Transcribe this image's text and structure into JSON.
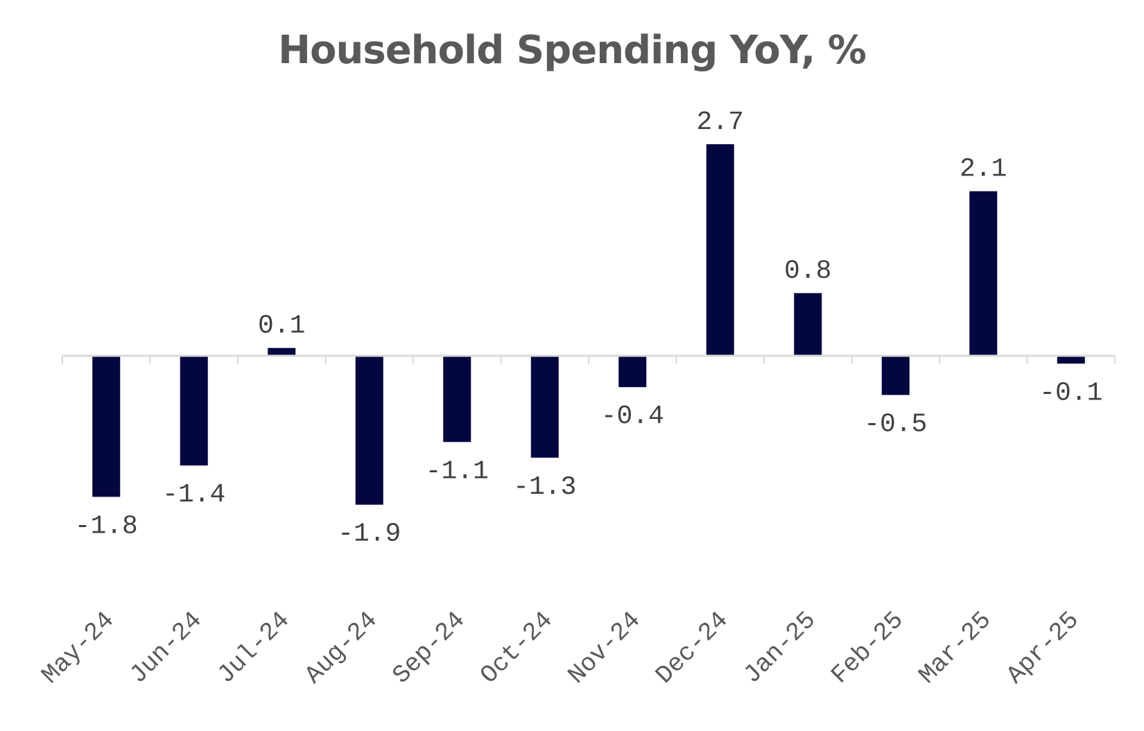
{
  "chart_data": {
    "type": "bar",
    "title": "Household Spending YoY, %",
    "xlabel": "",
    "ylabel": "",
    "categories": [
      "May-24",
      "Jun-24",
      "Jul-24",
      "Aug-24",
      "Sep-24",
      "Oct-24",
      "Nov-24",
      "Dec-24",
      "Jan-25",
      "Feb-25",
      "Mar-25",
      "Apr-25"
    ],
    "values": [
      -1.8,
      -1.4,
      0.1,
      -1.9,
      -1.1,
      -1.3,
      -0.4,
      2.7,
      0.8,
      -0.5,
      2.1,
      -0.1
    ],
    "data_labels": [
      "-1.8",
      "-1.4",
      "0.1",
      "-1.9",
      "-1.1",
      "-1.3",
      "-0.4",
      "2.7",
      "0.8",
      "-0.5",
      "2.1",
      "-0.1"
    ],
    "ylim": [
      -2.5,
      3.0
    ],
    "grid": false,
    "legend": "none",
    "bar_color": "#03063f",
    "axis_color": "#d9d9d9"
  }
}
